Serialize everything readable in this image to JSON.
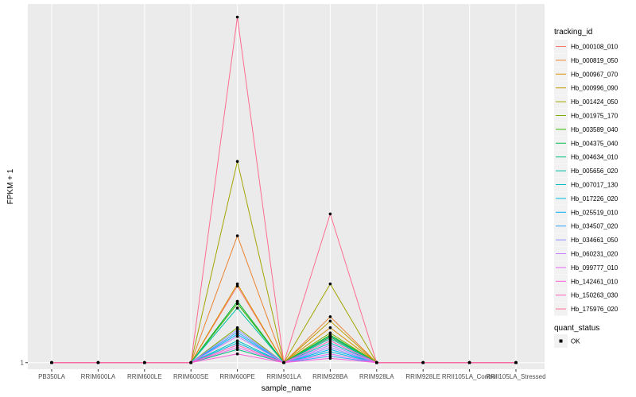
{
  "chart_data": {
    "type": "line",
    "xlabel": "sample_name",
    "ylabel": "FPKM + 1",
    "y_tick_labels": [
      "1"
    ],
    "grid": true,
    "legend_position": "right",
    "categories": [
      "PB350LA",
      "RRIM600LA",
      "RRIM600LE",
      "RRIM600SE",
      "RRIM600PE",
      "RRIM901LA",
      "RRIM928BA",
      "RRIM928LA",
      "RRIM928LE",
      "RRII105LA_Control",
      "RRII105LA_Stressed"
    ],
    "legend_title": "tracking_id",
    "series": [
      {
        "name": "Hb_000108_010",
        "color": "#F8766D",
        "values": [
          1,
          1,
          1,
          1,
          18.5,
          1,
          6.8,
          1,
          1,
          1,
          1
        ]
      },
      {
        "name": "Hb_000819_050",
        "color": "#EA8331",
        "values": [
          1,
          1,
          1,
          1,
          30,
          1,
          11.5,
          1,
          1,
          1,
          1
        ]
      },
      {
        "name": "Hb_000967_070",
        "color": "#D89000",
        "values": [
          1,
          1,
          1,
          1,
          19,
          1,
          9,
          1,
          1,
          1,
          1
        ]
      },
      {
        "name": "Hb_000996_090",
        "color": "#C09B00",
        "values": [
          1,
          1,
          1,
          1,
          15,
          1,
          10.5,
          1,
          1,
          1,
          1
        ]
      },
      {
        "name": "Hb_001424_050",
        "color": "#A3A500",
        "values": [
          1,
          1,
          1,
          1,
          47,
          1,
          19,
          1,
          1,
          1,
          1
        ]
      },
      {
        "name": "Hb_001975_170",
        "color": "#7CAE00",
        "values": [
          1,
          1,
          1,
          1,
          9,
          1,
          7.8,
          1,
          1,
          1,
          1
        ]
      },
      {
        "name": "Hb_003589_040",
        "color": "#39B600",
        "values": [
          1,
          1,
          1,
          1,
          14.5,
          1,
          7.3,
          1,
          1,
          1,
          1
        ]
      },
      {
        "name": "Hb_004375_040",
        "color": "#00BB4E",
        "values": [
          1,
          1,
          1,
          1,
          15,
          1,
          7.2,
          1,
          1,
          1,
          1
        ]
      },
      {
        "name": "Hb_004634_010",
        "color": "#00BF7D",
        "values": [
          1,
          1,
          1,
          1,
          4,
          1,
          6.9,
          1,
          1,
          1,
          1
        ]
      },
      {
        "name": "Hb_005656_020",
        "color": "#00C1A3",
        "values": [
          1,
          1,
          1,
          1,
          13.5,
          1,
          6.5,
          1,
          1,
          1,
          1
        ]
      },
      {
        "name": "Hb_007017_130",
        "color": "#00BFC4",
        "values": [
          1,
          1,
          1,
          1,
          6,
          1,
          5.5,
          1,
          1,
          1,
          1
        ]
      },
      {
        "name": "Hb_017226_020",
        "color": "#00BAE0",
        "values": [
          1,
          1,
          1,
          1,
          5.5,
          1,
          3.5,
          1,
          1,
          1,
          1
        ]
      },
      {
        "name": "Hb_025519_010",
        "color": "#00B0F6",
        "values": [
          1,
          1,
          1,
          1,
          7.5,
          1,
          4,
          1,
          1,
          1,
          1
        ]
      },
      {
        "name": "Hb_034507_020",
        "color": "#35A2FF",
        "values": [
          1,
          1,
          1,
          1,
          8,
          1,
          2.5,
          1,
          1,
          1,
          1
        ]
      },
      {
        "name": "Hb_034661_050",
        "color": "#9590FF",
        "values": [
          1,
          1,
          1,
          1,
          8.5,
          1,
          4.5,
          1,
          1,
          1,
          1
        ]
      },
      {
        "name": "Hb_060231_020",
        "color": "#C77CFF",
        "values": [
          1,
          1,
          1,
          1,
          7,
          1,
          5,
          1,
          1,
          1,
          1
        ]
      },
      {
        "name": "Hb_099777_010",
        "color": "#E76BF3",
        "values": [
          1,
          1,
          1,
          1,
          4.5,
          1,
          3,
          1,
          1,
          1,
          1
        ]
      },
      {
        "name": "Hb_142461_010",
        "color": "#FA62DB",
        "values": [
          1,
          1,
          1,
          1,
          3,
          1,
          2,
          1,
          1,
          1,
          1
        ]
      },
      {
        "name": "Hb_150263_030",
        "color": "#FF62BC",
        "values": [
          1,
          1,
          1,
          1,
          5,
          1,
          6,
          1,
          1,
          1,
          1
        ]
      },
      {
        "name": "Hb_175976_020",
        "color": "#FF6C91",
        "values": [
          1,
          1,
          1,
          1,
          80,
          1,
          35,
          1,
          1,
          1,
          1
        ]
      }
    ],
    "ylim": [
      -0.5,
      83
    ],
    "point_color": "#000000",
    "panel_color": "#EBEBEB",
    "grid_color": "#FFFFFF",
    "quant_status_legend": {
      "title": "quant_status",
      "items": [
        "OK"
      ]
    }
  }
}
